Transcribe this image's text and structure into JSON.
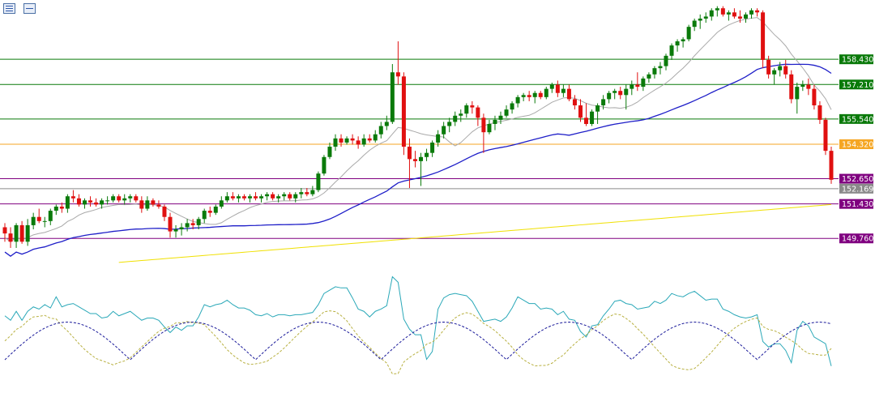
{
  "toolbar": {
    "icons": [
      "list-view-icon",
      "chart-properties-icon"
    ]
  },
  "chart_data": [
    {
      "type": "candlestick",
      "title": "",
      "y_axis_position": "right",
      "grid": false,
      "ylim": [
        148.75,
        161.3
      ],
      "moving_averages": [
        {
          "name": "",
          "color": "#a9a9a9",
          "style": "solid"
        },
        {
          "name": "",
          "color": "#1e1ec8",
          "style": "solid"
        },
        {
          "name": "",
          "color": "#f0e000",
          "style": "solid"
        }
      ],
      "levels": [
        {
          "value": "158.430",
          "color": "#0a7a0a"
        },
        {
          "value": "157.210",
          "color": "#0a7a0a"
        },
        {
          "value": "155.540",
          "color": "#0a7a0a"
        },
        {
          "value": "154.320",
          "color": "#f5a623"
        },
        {
          "value": "152.650",
          "color": "#800080"
        },
        {
          "value": "152.169",
          "color": "#8a8a8a"
        },
        {
          "value": "151.430",
          "color": "#800080"
        },
        {
          "value": "149.760",
          "color": "#800080"
        }
      ],
      "colors": {
        "bull": "#0a7a0a",
        "bear": "#e01010"
      },
      "candles": [
        [
          150.3,
          150.5,
          149.6,
          150.0
        ],
        [
          150.0,
          150.3,
          149.3,
          149.6
        ],
        [
          149.6,
          150.5,
          149.3,
          150.4
        ],
        [
          150.4,
          150.6,
          149.5,
          149.6
        ],
        [
          149.6,
          150.7,
          149.4,
          150.4
        ],
        [
          150.4,
          151.0,
          150.2,
          150.8
        ],
        [
          150.8,
          151.2,
          150.5,
          150.6
        ],
        [
          150.6,
          150.8,
          150.3,
          150.6
        ],
        [
          150.6,
          151.2,
          150.4,
          151.1
        ],
        [
          151.1,
          151.4,
          150.9,
          151.3
        ],
        [
          151.3,
          151.5,
          151.0,
          151.2
        ],
        [
          151.2,
          151.9,
          151.0,
          151.8
        ],
        [
          151.8,
          152.1,
          151.5,
          151.7
        ],
        [
          151.7,
          151.9,
          151.3,
          151.4
        ],
        [
          151.4,
          151.7,
          151.2,
          151.6
        ],
        [
          151.6,
          151.8,
          151.3,
          151.5
        ],
        [
          151.5,
          151.7,
          151.3,
          151.4
        ],
        [
          151.4,
          151.7,
          151.2,
          151.6
        ],
        [
          151.6,
          151.8,
          151.4,
          151.6
        ],
        [
          151.6,
          151.9,
          151.5,
          151.8
        ],
        [
          151.8,
          151.9,
          151.5,
          151.6
        ],
        [
          151.6,
          151.9,
          151.4,
          151.7
        ],
        [
          151.7,
          151.9,
          151.5,
          151.8
        ],
        [
          151.8,
          151.9,
          151.5,
          151.6
        ],
        [
          151.6,
          151.8,
          151.0,
          151.2
        ],
        [
          151.2,
          151.8,
          151.1,
          151.6
        ],
        [
          151.6,
          151.7,
          151.3,
          151.4
        ],
        [
          151.4,
          151.6,
          151.2,
          151.3
        ],
        [
          151.3,
          151.4,
          150.6,
          150.8
        ],
        [
          150.8,
          151.0,
          149.8,
          150.1
        ],
        [
          150.1,
          150.4,
          149.8,
          150.2
        ],
        [
          150.2,
          150.5,
          149.9,
          150.3
        ],
        [
          150.3,
          150.7,
          150.1,
          150.5
        ],
        [
          150.5,
          150.7,
          150.2,
          150.4
        ],
        [
          150.4,
          150.8,
          150.2,
          150.7
        ],
        [
          150.7,
          151.2,
          150.5,
          151.1
        ],
        [
          151.1,
          151.3,
          150.8,
          151.0
        ],
        [
          151.0,
          151.4,
          150.9,
          151.3
        ],
        [
          151.3,
          151.8,
          151.2,
          151.6
        ],
        [
          151.6,
          152.0,
          151.5,
          151.8
        ],
        [
          151.8,
          152.0,
          151.6,
          151.7
        ],
        [
          151.7,
          151.9,
          151.5,
          151.8
        ],
        [
          151.8,
          151.9,
          151.6,
          151.7
        ],
        [
          151.7,
          151.9,
          151.5,
          151.8
        ],
        [
          151.8,
          152.0,
          151.6,
          151.7
        ],
        [
          151.7,
          151.9,
          151.5,
          151.8
        ],
        [
          151.8,
          152.0,
          151.6,
          151.9
        ],
        [
          151.9,
          152.0,
          151.6,
          151.7
        ],
        [
          151.7,
          151.9,
          151.5,
          151.8
        ],
        [
          151.8,
          152.0,
          151.6,
          151.9
        ],
        [
          151.9,
          152.0,
          151.6,
          151.7
        ],
        [
          151.7,
          152.0,
          151.5,
          151.9
        ],
        [
          151.9,
          152.2,
          151.7,
          152.0
        ],
        [
          152.0,
          152.2,
          151.8,
          151.9
        ],
        [
          151.9,
          152.3,
          151.8,
          152.1
        ],
        [
          152.1,
          153.0,
          152.0,
          152.9
        ],
        [
          152.9,
          153.8,
          152.8,
          153.7
        ],
        [
          153.7,
          154.4,
          153.6,
          154.2
        ],
        [
          154.2,
          154.8,
          154.0,
          154.6
        ],
        [
          154.6,
          154.8,
          154.2,
          154.4
        ],
        [
          154.4,
          154.7,
          154.3,
          154.6
        ],
        [
          154.6,
          154.8,
          154.3,
          154.5
        ],
        [
          154.5,
          154.7,
          154.1,
          154.3
        ],
        [
          154.3,
          154.8,
          154.2,
          154.6
        ],
        [
          154.6,
          154.8,
          154.4,
          154.5
        ],
        [
          154.5,
          155.0,
          154.4,
          154.8
        ],
        [
          154.8,
          155.4,
          154.6,
          155.2
        ],
        [
          155.2,
          155.7,
          155.0,
          155.4
        ],
        [
          155.4,
          158.2,
          155.3,
          157.8
        ],
        [
          157.8,
          159.3,
          157.2,
          157.6
        ],
        [
          157.6,
          157.8,
          153.8,
          154.2
        ],
        [
          154.2,
          154.6,
          152.2,
          153.6
        ],
        [
          153.6,
          154.0,
          153.2,
          153.5
        ],
        [
          153.5,
          153.9,
          152.3,
          153.7
        ],
        [
          153.7,
          154.1,
          153.5,
          153.9
        ],
        [
          153.9,
          154.5,
          153.7,
          154.4
        ],
        [
          154.4,
          155.0,
          154.2,
          154.8
        ],
        [
          154.8,
          155.4,
          154.6,
          155.2
        ],
        [
          155.2,
          155.6,
          154.9,
          155.4
        ],
        [
          155.4,
          155.9,
          155.2,
          155.7
        ],
        [
          155.7,
          156.0,
          155.4,
          155.8
        ],
        [
          155.8,
          156.3,
          155.6,
          156.2
        ],
        [
          156.2,
          156.4,
          155.8,
          156.1
        ],
        [
          156.1,
          156.2,
          155.2,
          155.6
        ],
        [
          155.6,
          155.8,
          153.9,
          154.9
        ],
        [
          154.9,
          155.5,
          154.8,
          155.3
        ],
        [
          155.3,
          155.7,
          155.0,
          155.5
        ],
        [
          155.5,
          155.9,
          155.3,
          155.7
        ],
        [
          155.7,
          156.2,
          155.6,
          156.0
        ],
        [
          156.0,
          156.4,
          155.8,
          156.3
        ],
        [
          156.3,
          156.7,
          156.1,
          156.6
        ],
        [
          156.6,
          156.8,
          156.4,
          156.7
        ],
        [
          156.7,
          156.9,
          156.4,
          156.6
        ],
        [
          156.6,
          156.9,
          156.3,
          156.8
        ],
        [
          156.8,
          156.9,
          156.5,
          156.6
        ],
        [
          156.6,
          157.1,
          156.5,
          157.0
        ],
        [
          157.0,
          157.3,
          156.8,
          157.2
        ],
        [
          157.2,
          157.4,
          156.6,
          156.8
        ],
        [
          156.8,
          157.2,
          156.6,
          157.0
        ],
        [
          157.0,
          157.2,
          156.4,
          156.5
        ],
        [
          156.5,
          156.7,
          156.0,
          156.2
        ],
        [
          156.2,
          156.5,
          155.4,
          155.6
        ],
        [
          155.6,
          156.3,
          155.2,
          155.3
        ],
        [
          155.3,
          156.0,
          155.2,
          155.9
        ],
        [
          155.9,
          156.3,
          155.3,
          156.2
        ],
        [
          156.2,
          156.7,
          156.0,
          156.5
        ],
        [
          156.5,
          156.9,
          156.3,
          156.8
        ],
        [
          156.8,
          157.0,
          156.5,
          156.9
        ],
        [
          156.9,
          157.1,
          156.5,
          156.7
        ],
        [
          156.7,
          157.2,
          156.0,
          157.0
        ],
        [
          157.0,
          157.4,
          156.7,
          157.2
        ],
        [
          157.2,
          157.8,
          156.9,
          157.1
        ],
        [
          157.1,
          157.6,
          156.9,
          157.5
        ],
        [
          157.5,
          157.8,
          157.3,
          157.7
        ],
        [
          157.7,
          158.1,
          157.5,
          158.0
        ],
        [
          158.0,
          158.3,
          157.7,
          158.1
        ],
        [
          158.1,
          158.7,
          157.9,
          158.6
        ],
        [
          158.6,
          159.2,
          158.4,
          159.1
        ],
        [
          159.1,
          159.4,
          158.8,
          159.3
        ],
        [
          159.3,
          159.5,
          159.0,
          159.4
        ],
        [
          159.4,
          160.1,
          159.3,
          160.0
        ],
        [
          160.0,
          160.4,
          159.8,
          160.3
        ],
        [
          160.3,
          160.6,
          159.9,
          160.4
        ],
        [
          160.4,
          160.7,
          160.2,
          160.5
        ],
        [
          160.5,
          160.9,
          160.3,
          160.8
        ],
        [
          160.8,
          161.0,
          160.5,
          160.9
        ],
        [
          160.9,
          161.0,
          160.5,
          160.6
        ],
        [
          160.6,
          160.8,
          160.3,
          160.7
        ],
        [
          160.7,
          160.9,
          160.4,
          160.5
        ],
        [
          160.5,
          160.8,
          160.2,
          160.4
        ],
        [
          160.4,
          160.7,
          160.2,
          160.6
        ],
        [
          160.6,
          160.9,
          160.4,
          160.8
        ],
        [
          160.8,
          160.9,
          160.5,
          160.7
        ],
        [
          160.7,
          160.8,
          158.0,
          158.4
        ],
        [
          158.4,
          158.6,
          157.5,
          157.7
        ],
        [
          157.7,
          158.0,
          157.2,
          157.9
        ],
        [
          157.9,
          158.3,
          157.6,
          158.1
        ],
        [
          158.1,
          158.4,
          157.5,
          157.7
        ],
        [
          157.7,
          157.9,
          156.3,
          156.5
        ],
        [
          156.5,
          157.3,
          155.8,
          157.1
        ],
        [
          157.1,
          157.4,
          156.9,
          157.2
        ],
        [
          157.2,
          157.5,
          156.7,
          157.0
        ],
        [
          157.0,
          157.2,
          156.0,
          156.2
        ],
        [
          156.2,
          156.4,
          155.3,
          155.5
        ],
        [
          155.5,
          155.6,
          153.8,
          154.0
        ],
        [
          154.0,
          154.2,
          152.4,
          152.6
        ]
      ]
    },
    {
      "type": "line",
      "title": "",
      "series": [
        {
          "name": "",
          "color": "#2aa8b8",
          "style": "solid"
        },
        {
          "name": "",
          "color": "#b8b040",
          "style": "dashed"
        },
        {
          "name": "",
          "color": "#1a1a9a",
          "style": "dashed"
        }
      ],
      "ylim": [
        0,
        100
      ]
    }
  ]
}
